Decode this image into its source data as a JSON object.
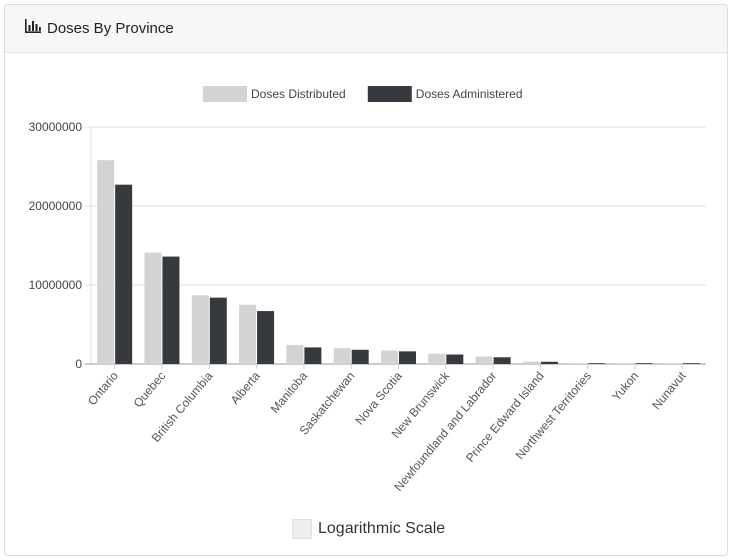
{
  "header": {
    "title": "Doses By Province",
    "icon": "bar-chart-icon"
  },
  "chart_data": {
    "type": "bar",
    "categories": [
      "Ontario",
      "Quebec",
      "British Columbia",
      "Alberta",
      "Manitoba",
      "Saskatchewan",
      "Nova Scotia",
      "New Brunswick",
      "Newfoundland and Labrador",
      "Prince Edward Island",
      "Northwest Territories",
      "Yukon",
      "Nunavut"
    ],
    "series": [
      {
        "name": "Doses Distributed",
        "color": "#d3d3d3",
        "values": [
          25800000,
          14100000,
          8700000,
          7500000,
          2400000,
          2000000,
          1700000,
          1300000,
          950000,
          300000,
          100000,
          100000,
          80000
        ]
      },
      {
        "name": "Doses Administered",
        "color": "#36393d",
        "values": [
          22700000,
          13600000,
          8400000,
          6700000,
          2100000,
          1800000,
          1600000,
          1200000,
          850000,
          280000,
          95000,
          90000,
          70000
        ]
      }
    ],
    "y_ticks": [
      "0",
      "10000000",
      "20000000",
      "30000000"
    ],
    "ylim": [
      0,
      30000000
    ],
    "grid": true,
    "legend_position": "top"
  },
  "controls": {
    "log_scale_label": "Logarithmic Scale",
    "log_scale_checked": false
  }
}
